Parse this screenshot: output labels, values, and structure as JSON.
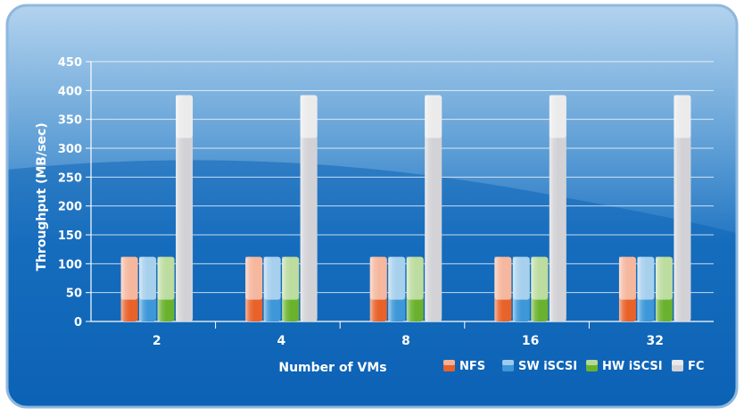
{
  "chart_data": {
    "type": "bar",
    "title": "",
    "xlabel": "Number of VMs",
    "ylabel": "Throughput (MB/sec)",
    "categories": [
      "2",
      "4",
      "8",
      "16",
      "32"
    ],
    "ylim": [
      0,
      450
    ],
    "yticks": [
      "0",
      "50",
      "100",
      "150",
      "200",
      "250",
      "300",
      "350",
      "400",
      "450"
    ],
    "grid": true,
    "legend_position": "bottom-right",
    "series": [
      {
        "name": "NFS",
        "color": "#e8622a",
        "values": [
          112,
          112,
          112,
          112,
          112
        ]
      },
      {
        "name": "SW iSCSI",
        "color": "#3d97d8",
        "values": [
          112,
          112,
          112,
          112,
          112
        ]
      },
      {
        "name": "HW iSCSI",
        "color": "#6ab22e",
        "values": [
          112,
          112,
          112,
          112,
          112
        ]
      },
      {
        "name": "FC",
        "color": "#d2d2d6",
        "values": [
          392,
          392,
          392,
          392,
          392
        ]
      }
    ]
  }
}
